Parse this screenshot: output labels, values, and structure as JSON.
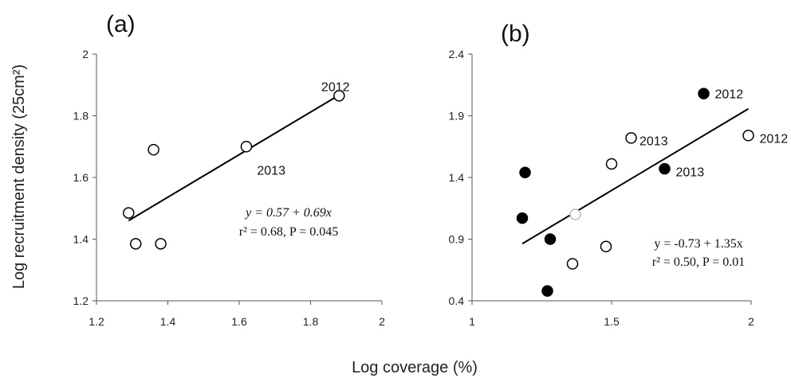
{
  "figure": {
    "ylabel": "Log recruitment density (25cm²)",
    "xlabel": "Log coverage (%)"
  },
  "chart_data": [
    {
      "type": "scatter",
      "panel_label": "(a)",
      "xlim": [
        1.2,
        2.0
      ],
      "ylim": [
        1.2,
        2.0
      ],
      "xticks": [
        "1.2",
        "1.4",
        "1.6",
        "1.8",
        "2"
      ],
      "yticks": [
        "1.2",
        "1.4",
        "1.6",
        "1.8",
        "2"
      ],
      "series": [
        {
          "marker": "open-circle",
          "points": [
            {
              "x": 1.29,
              "y": 1.485
            },
            {
              "x": 1.31,
              "y": 1.385
            },
            {
              "x": 1.36,
              "y": 1.69
            },
            {
              "x": 1.38,
              "y": 1.385
            },
            {
              "x": 1.62,
              "y": 1.7
            },
            {
              "x": 1.88,
              "y": 1.865
            }
          ]
        }
      ],
      "fit_line": {
        "intercept": 0.57,
        "slope": 0.69,
        "x_range": [
          1.29,
          1.88
        ]
      },
      "annotations": [
        {
          "text": "2012",
          "x": 1.83,
          "y": 1.895
        },
        {
          "text": "2013",
          "x": 1.65,
          "y": 1.625
        }
      ],
      "equation": {
        "line1": "y = 0.57 + 0.69x",
        "line2": "r² = 0.68, P = 0.045"
      },
      "grid": false
    },
    {
      "type": "scatter",
      "panel_label": "(b)",
      "xlim": [
        1.0,
        2.0
      ],
      "ylim": [
        0.4,
        2.4
      ],
      "xticks": [
        "1",
        "1.5",
        "2"
      ],
      "yticks": [
        "0.4",
        "0.9",
        "1.4",
        "1.9",
        "2.4"
      ],
      "series": [
        {
          "marker": "filled-circle",
          "points": [
            {
              "x": 1.18,
              "y": 1.07
            },
            {
              "x": 1.19,
              "y": 1.44
            },
            {
              "x": 1.27,
              "y": 0.48
            },
            {
              "x": 1.28,
              "y": 0.9
            },
            {
              "x": 1.69,
              "y": 1.47
            },
            {
              "x": 1.83,
              "y": 2.08
            }
          ]
        },
        {
          "marker": "open-circle",
          "points": [
            {
              "x": 1.36,
              "y": 0.7
            },
            {
              "x": 1.48,
              "y": 0.84
            },
            {
              "x": 1.5,
              "y": 1.51
            },
            {
              "x": 1.57,
              "y": 1.72
            },
            {
              "x": 1.99,
              "y": 1.74
            }
          ]
        },
        {
          "marker": "open-circle-gray",
          "points": [
            {
              "x": 1.37,
              "y": 1.1
            }
          ]
        }
      ],
      "fit_line": {
        "intercept": -0.73,
        "slope": 1.35,
        "x_range": [
          1.18,
          1.99
        ]
      },
      "annotations": [
        {
          "text": "2012",
          "x": 1.87,
          "y": 2.08
        },
        {
          "text": "2013",
          "x": 1.6,
          "y": 1.7
        },
        {
          "text": "2013",
          "x": 1.73,
          "y": 1.45
        },
        {
          "text": "2012",
          "x": 2.03,
          "y": 1.72
        }
      ],
      "equation": {
        "line1": "y = -0.73 + 1.35x",
        "line2": "r² = 0.50, P = 0.01"
      },
      "grid": false
    }
  ]
}
